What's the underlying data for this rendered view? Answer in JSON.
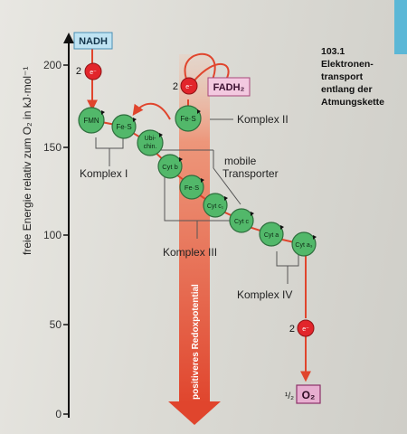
{
  "axis": {
    "label": "freie Energie relativ zum O₂ in kJ·mol⁻¹",
    "ticks": [
      "200",
      "150",
      "100",
      "50",
      "0"
    ]
  },
  "caption": {
    "number": "103.1",
    "text": "Elektronen-\ntransport\nentlang der\nAtmungskette"
  },
  "carriers": {
    "nadh": "NADH",
    "fadh2": "FADH₂",
    "e_label": "2",
    "e_symbol": "e⁻",
    "fmn": "FMN",
    "fes_1": "Fe·S",
    "fes_2": "Fe·S",
    "ubichinon": "Ubi-\nchin.",
    "cyt_b": "Cyt b",
    "fes_3": "Fe·S",
    "cyt_c1": "Cyt c₁",
    "cyt_c": "Cyt c",
    "cyt_a": "Cyt a",
    "cyt_a3": "Cyt a₃",
    "o2_prefix": "¹/₂",
    "o2": "O₂"
  },
  "labels": {
    "komplex_1": "Komplex I",
    "komplex_2": "Komplex II",
    "komplex_3": "Komplex III",
    "komplex_4": "Komplex IV",
    "mobile": "mobile\nTransporter",
    "redox": "positiveres Redoxpotential"
  },
  "colors": {
    "carrier_fill": "#52b86a",
    "electron_fill": "#e2252b",
    "path": "#e0452d",
    "nadh_box": "#bfe3f2",
    "fadh_box": "#f3c9e0",
    "o2_box": "#e7aed0"
  }
}
